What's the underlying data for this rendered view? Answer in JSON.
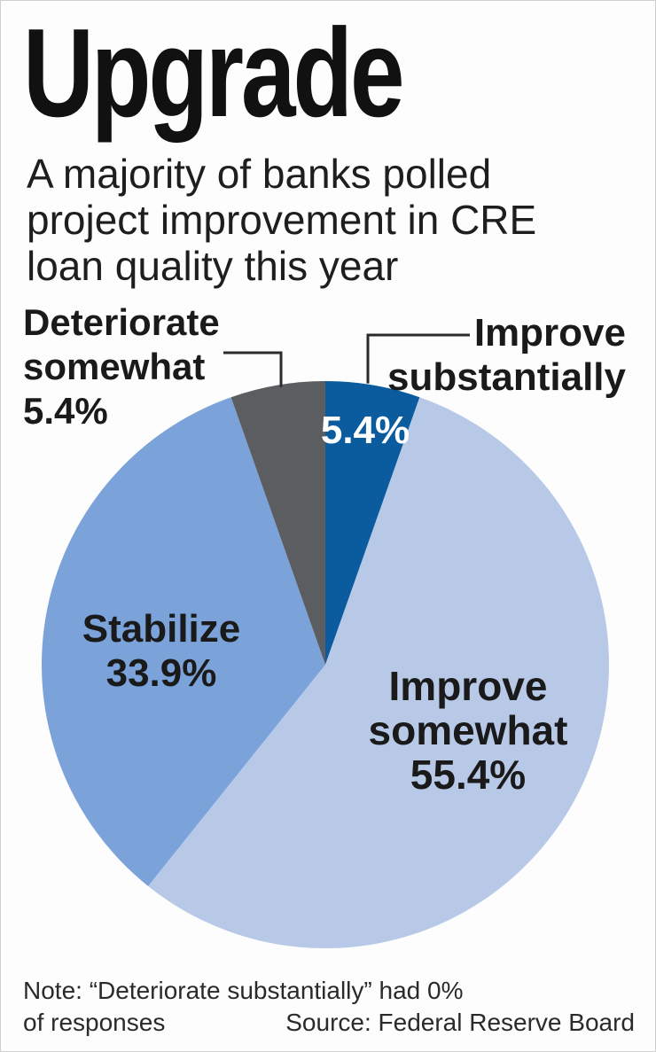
{
  "header": {
    "title": "Upgrade",
    "subtitle_lines": [
      "A majority of banks polled",
      "project improvement in CRE",
      "loan quality this year"
    ]
  },
  "chart_data": {
    "type": "pie",
    "title": "Upgrade",
    "subtitle": "A majority of banks polled project improvement in CRE loan quality this year",
    "start": "12 o'clock, clockwise",
    "slices": [
      {
        "label_lines": [
          "Improve",
          "substantially"
        ],
        "value": 5.4,
        "display": "5.4%",
        "color": "#0a5c9f"
      },
      {
        "label_lines": [
          "Improve",
          "somewhat"
        ],
        "value": 55.4,
        "display": "55.4%",
        "color": "#b8c9e8"
      },
      {
        "label_lines": [
          "Stabilize"
        ],
        "value": 33.9,
        "display": "33.9%",
        "color": "#7ba3da"
      },
      {
        "label_lines": [
          "Deteriorate",
          "somewhat"
        ],
        "value": 5.4,
        "display": "5.4%",
        "color": "#5b5d61"
      }
    ]
  },
  "footer": {
    "note_line1": "Note: “Deteriorate substantially” had 0%",
    "note_line2": "of responses",
    "source": "Source: Federal Reserve Board"
  }
}
